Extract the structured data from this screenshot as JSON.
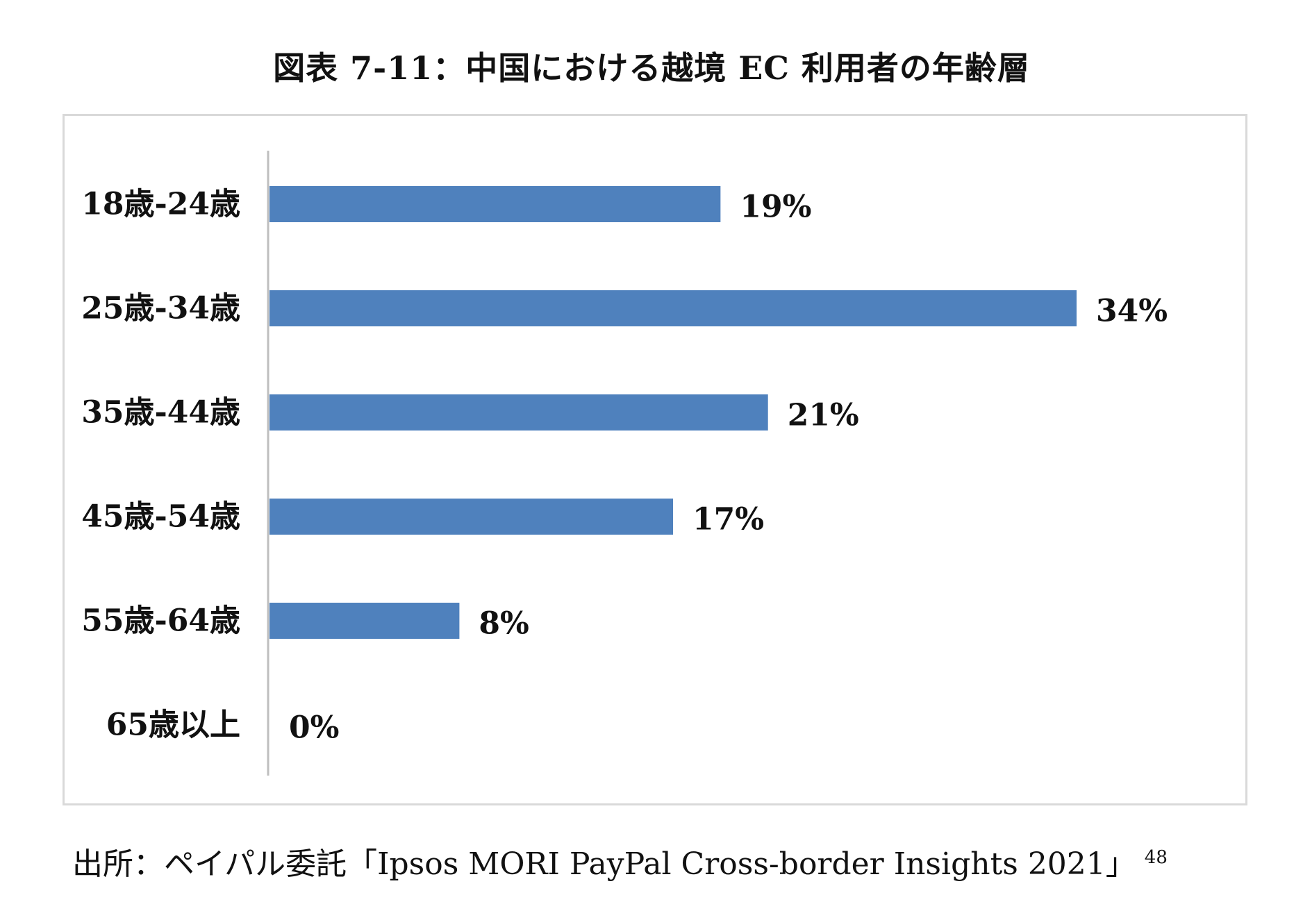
{
  "title": "図表 7-11：中国における越境 EC 利用者の年齢層",
  "source": {
    "text": "出所：ペイパル委託「Ipsos MORI PayPal Cross-border Insights 2021」",
    "footnote": "48"
  },
  "colors": {
    "bar": "#4f81bd",
    "axis": "#bfbfbf",
    "frame": "#d9d9d9"
  },
  "chart_data": {
    "type": "bar",
    "orientation": "horizontal",
    "categories": [
      "18歳-24歳",
      "25歳-34歳",
      "35歳-44歳",
      "45歳-54歳",
      "55歳-64歳",
      "65歳以上"
    ],
    "values": [
      19,
      34,
      21,
      17,
      8,
      0
    ],
    "data_labels": [
      "19%",
      "34%",
      "21%",
      "17%",
      "8%",
      "0%"
    ],
    "unit": "%",
    "xlim": [
      0,
      34
    ],
    "grid": false,
    "legend": "none"
  }
}
